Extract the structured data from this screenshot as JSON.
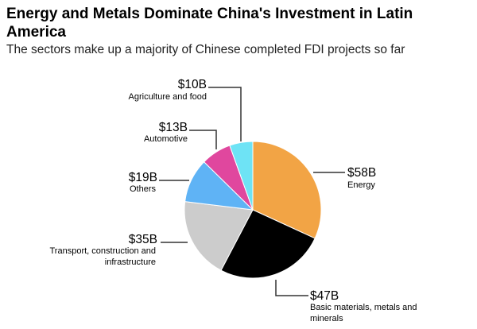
{
  "title": "Energy and Metals Dominate China's Investment in Latin America",
  "subtitle": "The sectors make up a majority of Chinese completed FDI projects so far",
  "chart_data": {
    "type": "pie",
    "unit": "USD billions",
    "start": "12 o'clock, clockwise",
    "slices": [
      {
        "label": "Energy",
        "value": 58,
        "value_label": "$58B",
        "color": "#f2a445"
      },
      {
        "label": "Basic materials, metals and minerals",
        "value": 47,
        "value_label": "$47B",
        "color": "#000000"
      },
      {
        "label": "Transport, construction and infrastructure",
        "value": 35,
        "value_label": "$35B",
        "color": "#cccccc"
      },
      {
        "label": "Others",
        "value": 19,
        "value_label": "$19B",
        "color": "#5fb3f5"
      },
      {
        "label": "Automotive",
        "value": 13,
        "value_label": "$13B",
        "color": "#e0479e"
      },
      {
        "label": "Agriculture and food",
        "value": 10,
        "value_label": "$10B",
        "color": "#6ee3f5"
      }
    ]
  }
}
